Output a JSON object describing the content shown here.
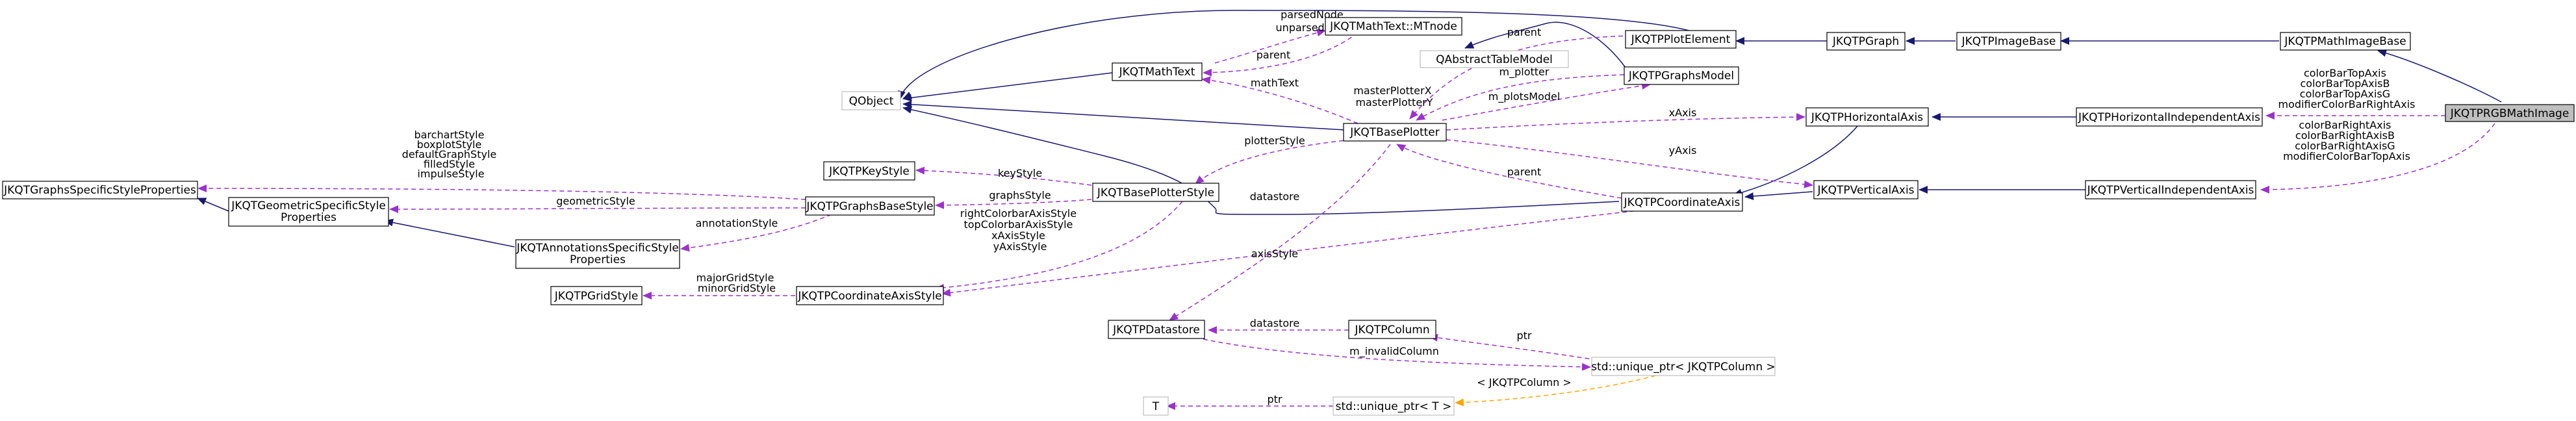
{
  "nodes": {
    "jkqtprgbmathimage": "JKQTPRGBMathImage",
    "jkqtpmathimagebase": "JKQTPMathImageBase",
    "jkqtpimagebase": "JKQTPImageBase",
    "jkqtpgraph": "JKQTPGraph",
    "jkqtpplotelement": "JKQTPPlotElement",
    "qobject": "QObject",
    "jkqtmathtext": "JKQTMathText",
    "jkqtmathtext_mtnode": "JKQTMathText::MTnode",
    "qabstracttablemodel": "QAbstractTableModel",
    "jkqtpgraphsmodel": "JKQTPGraphsModel",
    "jkqtpbaseplotter": "JKQTBasePlotter",
    "jkqtphorizontalaxis": "JKQTPHorizontalAxis",
    "jkqtphorizontalindependentaxis": "JKQTPHorizontalIndependentAxis",
    "jkqtpverticalaxis": "JKQTPVerticalAxis",
    "jkqtpverticalindependentaxis": "JKQTPVerticalIndependentAxis",
    "jkqtpcoordinateaxis": "JKQTPCoordinateAxis",
    "jkqtpkeystyle": "JKQTPKeyStyle",
    "jkqtbaseplotterstyle": "JKQTBasePlotterStyle",
    "jkqtpgraphsbasestyle": "JKQTPGraphsBaseStyle",
    "jkqtpgraphsspecificstyleproperties": "JKQTGraphsSpecificStyleProperties",
    "jkqtpgeometricspecificstyleproperties": [
      "JKQTGeometricSpecificStyle",
      "Properties"
    ],
    "jkqtpannotationsspecificstyleproperties": [
      "JKQTAnnotationsSpecificStyle",
      "Properties"
    ],
    "jkqtpgridstyle": "JKQTPGridStyle",
    "jkqtpcoordinateaxisstyle": "JKQTPCoordinateAxisStyle",
    "jkqtpdatastore": "JKQTPDatastore",
    "jkqtpcolumn": "JKQTPColumn",
    "unique_ptr_column": "std::unique_ptr< JKQTPColumn >",
    "t": "T",
    "unique_ptr_t": "std::unique_ptr< T >"
  },
  "edge_labels": {
    "parsednode": [
      "parsedNode",
      "unparsedNode"
    ],
    "parent_mathtext": "parent",
    "mathtext": "mathText",
    "parent_plotelement": "parent",
    "masterplotter": [
      "masterPlotterX",
      "masterPlotterY"
    ],
    "m_plotter": "m_plotter",
    "m_plotsmodel": "m_plotsModel",
    "xaxis": "xAxis",
    "yaxis": "yAxis",
    "parent_coordinateaxis": "parent",
    "plotterstyle": "plotterStyle",
    "datastore_plotter": "datastore",
    "keystyle": "keyStyle",
    "graphsstyle": "graphsStyle",
    "barchartstyle": [
      "barchartStyle",
      "boxplotStyle",
      "defaultGraphStyle",
      "filledStyle",
      "impulseStyle"
    ],
    "geometricstyle": "geometricStyle",
    "annotationstyle": "annotationStyle",
    "axisstyles_plotter": [
      "rightColorbarAxisStyle",
      "topColorbarAxisStyle",
      "xAxisStyle",
      "yAxisStyle"
    ],
    "axisstyle": "axisStyle",
    "gridstyle": [
      "majorGridStyle",
      "minorGridStyle"
    ],
    "colorbartop": [
      "colorBarTopAxis",
      "colorBarTopAxisB",
      "colorBarTopAxisG",
      "modifierColorBarRightAxis"
    ],
    "colorbarright": [
      "colorBarRightAxis",
      "colorBarRightAxisB",
      "colorBarRightAxisG",
      "modifierColorBarTopAxis"
    ],
    "datastore_column": "datastore",
    "ptr_column": "ptr",
    "m_invalidcolumn": "m_invalidColumn",
    "template_column": "< JKQTPColumn >",
    "ptr_t": "ptr"
  },
  "colors": {
    "inheritance": "#191970",
    "usage": "#9a32cd",
    "template": "#ffa500",
    "focus_fill": "#bfbfbf",
    "external_border": "#bfbfbf"
  }
}
